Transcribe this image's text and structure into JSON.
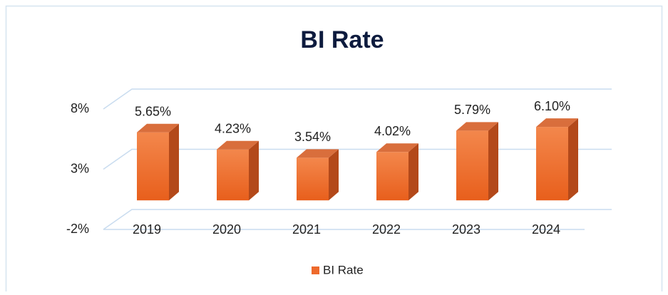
{
  "chart_data": {
    "type": "bar3d",
    "title": "BI Rate",
    "categories": [
      "2019",
      "2020",
      "2021",
      "2022",
      "2023",
      "2024"
    ],
    "series": [
      {
        "name": "BI Rate",
        "color": "#ee6a2c",
        "values": [
          5.65,
          4.23,
          3.54,
          4.02,
          5.79,
          6.1
        ],
        "value_labels": [
          "5.65%",
          "4.23%",
          "3.54%",
          "4.02%",
          "5.79%",
          "6.10%"
        ]
      }
    ],
    "ylim": [
      -2,
      8
    ],
    "yticks": [
      {
        "value": -2,
        "label": "-2%"
      },
      {
        "value": 3,
        "label": "3%"
      },
      {
        "value": 8,
        "label": "8%"
      }
    ],
    "grid": true,
    "legend": "bottom"
  }
}
